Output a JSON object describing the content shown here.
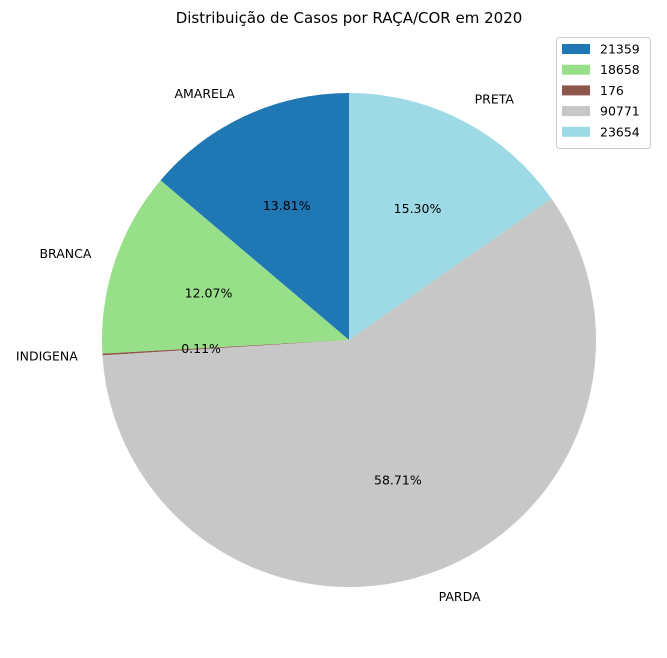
{
  "chart_data": {
    "type": "pie",
    "title": "Distribuição de Casos por RAÇA/COR em 2020",
    "start_angle_deg": 90,
    "direction": "counterclockwise",
    "legend_placement": "top-right",
    "slices": [
      {
        "label": "AMARELA",
        "value": 21359,
        "percent_label": "13.81%",
        "legend_label": "21359",
        "color": "#1f77b4"
      },
      {
        "label": "BRANCA",
        "value": 18658,
        "percent_label": "12.07%",
        "legend_label": "18658",
        "color": "#98df8a"
      },
      {
        "label": "INDIGENA",
        "value": 176,
        "percent_label": "0.11%",
        "legend_label": "176",
        "color": "#8c564b"
      },
      {
        "label": "PARDA",
        "value": 90771,
        "percent_label": "58.71%",
        "legend_label": "90771",
        "color": "#c7c7c7"
      },
      {
        "label": "PRETA",
        "value": 23654,
        "percent_label": "15.30%",
        "legend_label": "23654",
        "color": "#9edae5"
      }
    ]
  }
}
